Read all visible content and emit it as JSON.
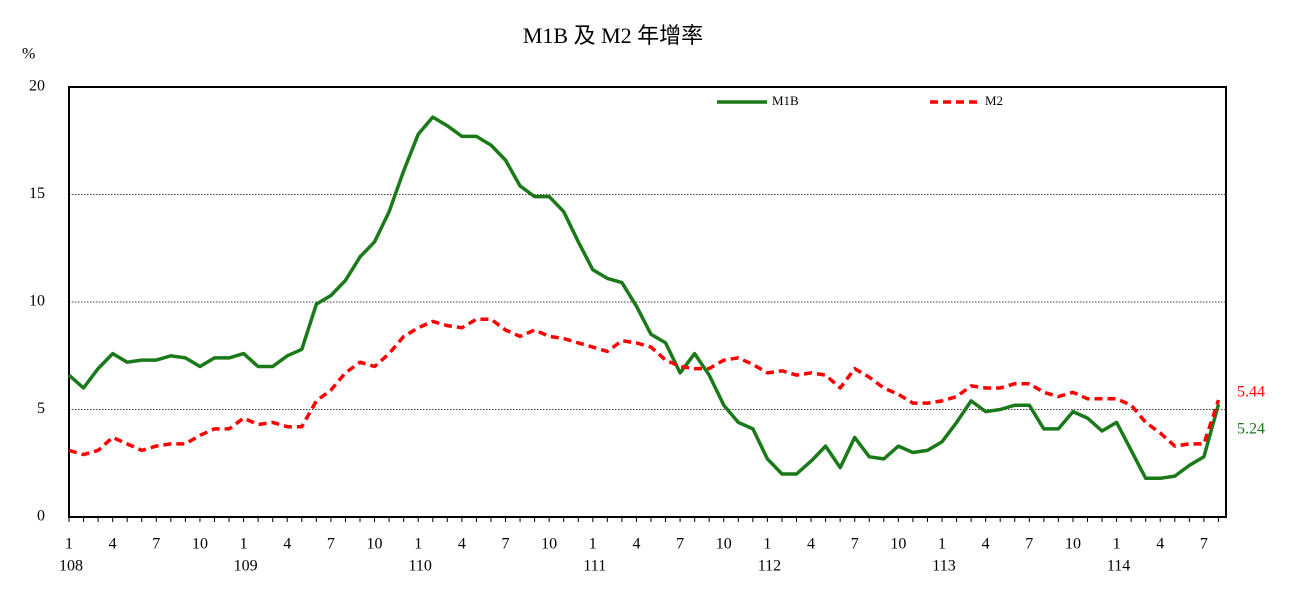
{
  "chart_data": {
    "type": "line",
    "title": "M1B 及 M2 年增率",
    "y_label": "%",
    "categories": [
      "1",
      null,
      null,
      "4",
      null,
      null,
      "7",
      null,
      null,
      "10",
      null,
      null,
      "1",
      null,
      null,
      "4",
      null,
      null,
      "7",
      null,
      null,
      "10",
      null,
      null,
      "1",
      null,
      null,
      "4",
      null,
      null,
      "7",
      null,
      null,
      "10",
      null,
      null,
      "1",
      null,
      null,
      "4",
      null,
      null,
      "7",
      null,
      null,
      "10",
      null,
      null,
      "1",
      null,
      null,
      "4",
      null,
      null,
      "7",
      null,
      null,
      "10",
      null,
      null,
      "1",
      null,
      null,
      "4",
      null,
      null,
      "7",
      null,
      null,
      "10",
      null,
      null,
      "1",
      null,
      null,
      "4",
      null,
      null,
      "7",
      null
    ],
    "years": [
      "108",
      "109",
      "110",
      "111",
      "112",
      "113",
      "114"
    ],
    "series": [
      {
        "name": "M1B",
        "color": "#1a7a1a",
        "dash": false,
        "end_label": "5.24",
        "values": [
          6.6,
          6.0,
          6.9,
          7.6,
          7.2,
          7.3,
          7.3,
          7.5,
          7.4,
          7.0,
          7.4,
          7.4,
          7.6,
          7.0,
          7.0,
          7.5,
          7.8,
          9.9,
          10.3,
          11.0,
          12.1,
          12.8,
          14.2,
          16.1,
          17.8,
          18.6,
          18.2,
          17.7,
          17.7,
          17.3,
          16.6,
          15.4,
          14.9,
          14.9,
          14.2,
          12.8,
          11.5,
          11.1,
          10.9,
          9.8,
          8.5,
          8.1,
          6.7,
          7.6,
          6.6,
          5.2,
          4.4,
          4.1,
          2.7,
          2.0,
          2.0,
          2.6,
          3.3,
          2.3,
          3.7,
          2.8,
          2.7,
          3.3,
          3.0,
          3.1,
          3.5,
          4.4,
          5.4,
          4.9,
          5.0,
          5.2,
          5.2,
          4.1,
          4.1,
          4.9,
          4.6,
          4.0,
          4.4,
          3.1,
          1.8,
          1.8,
          1.9,
          2.4,
          2.8,
          5.24
        ]
      },
      {
        "name": "M2",
        "color": "#ff0000",
        "dash": true,
        "end_label": "5.44",
        "values": [
          3.1,
          2.9,
          3.1,
          3.7,
          3.4,
          3.1,
          3.3,
          3.4,
          3.4,
          3.8,
          4.1,
          4.1,
          4.6,
          4.3,
          4.4,
          4.2,
          4.2,
          5.4,
          5.9,
          6.7,
          7.2,
          7.0,
          7.6,
          8.4,
          8.8,
          9.1,
          8.9,
          8.8,
          9.2,
          9.2,
          8.7,
          8.4,
          8.7,
          8.4,
          8.3,
          8.1,
          7.9,
          7.7,
          8.2,
          8.1,
          7.9,
          7.3,
          7.0,
          6.9,
          6.9,
          7.3,
          7.4,
          7.1,
          6.7,
          6.8,
          6.6,
          6.7,
          6.6,
          6.0,
          6.9,
          6.5,
          6.0,
          5.7,
          5.3,
          5.3,
          5.4,
          5.6,
          6.1,
          6.0,
          6.0,
          6.2,
          6.2,
          5.8,
          5.6,
          5.8,
          5.5,
          5.5,
          5.5,
          5.2,
          4.4,
          3.9,
          3.3,
          3.4,
          3.4,
          5.44
        ]
      }
    ],
    "ylim": [
      0,
      20
    ],
    "yticks": [
      0,
      5,
      10,
      15,
      20
    ],
    "grid": true
  }
}
